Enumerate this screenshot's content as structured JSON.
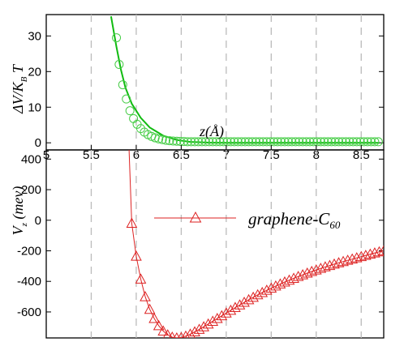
{
  "chart_data": [
    {
      "type": "scatter",
      "title": "",
      "xlabel": "z(Å)",
      "ylabel": "ΔV/K_B T",
      "ylim": [
        -2,
        36
      ],
      "grid": "vertical-dashed",
      "series": [
        {
          "kind": "line",
          "color": "#11bb11",
          "x": [
            5.72,
            5.78,
            5.83,
            5.88,
            5.95,
            6.05,
            6.15,
            6.3,
            6.45,
            6.6,
            6.8,
            7.0,
            7.5,
            8.0,
            8.7
          ],
          "y": [
            35.5,
            27.0,
            20.5,
            15.5,
            11.0,
            7.0,
            4.3,
            2.0,
            0.8,
            0.25,
            0.05,
            0.0,
            0.0,
            0.0,
            0.0
          ]
        },
        {
          "kind": "markers",
          "marker": "circle",
          "color": "#44cc44",
          "x": [
            5.78,
            5.81,
            5.85,
            5.89,
            5.93,
            5.97,
            6.01,
            6.05,
            6.09,
            6.13,
            6.17,
            6.21,
            6.25,
            6.29,
            6.33,
            6.37,
            6.41,
            6.45,
            6.49,
            6.53,
            6.57,
            6.61,
            6.65,
            6.69,
            6.73,
            6.77,
            6.81,
            6.85,
            6.89,
            6.93,
            6.97,
            7.01,
            7.05,
            7.09,
            7.13,
            7.17,
            7.21,
            7.25,
            7.29,
            7.33,
            7.37,
            7.41,
            7.45,
            7.49,
            7.53,
            7.57,
            7.61,
            7.65,
            7.69,
            7.73,
            7.77,
            7.81,
            7.85,
            7.89,
            7.93,
            7.97,
            8.01,
            8.05,
            8.09,
            8.13,
            8.17,
            8.21,
            8.25,
            8.29,
            8.33,
            8.37,
            8.41,
            8.45,
            8.49,
            8.53,
            8.57,
            8.61,
            8.65,
            8.69
          ],
          "y": [
            29.5,
            22.0,
            16.3,
            12.3,
            9.0,
            6.8,
            5.2,
            4.0,
            3.0,
            2.3,
            1.8,
            1.4,
            1.1,
            0.9,
            0.7,
            0.6,
            0.5,
            0.45,
            0.4,
            0.35,
            0.3,
            0.3,
            0.3,
            0.3,
            0.3,
            0.3,
            0.3,
            0.3,
            0.3,
            0.3,
            0.3,
            0.3,
            0.3,
            0.3,
            0.3,
            0.3,
            0.3,
            0.3,
            0.3,
            0.3,
            0.3,
            0.3,
            0.3,
            0.3,
            0.3,
            0.3,
            0.3,
            0.3,
            0.3,
            0.3,
            0.3,
            0.3,
            0.3,
            0.3,
            0.3,
            0.3,
            0.3,
            0.3,
            0.3,
            0.3,
            0.3,
            0.3,
            0.3,
            0.3,
            0.3,
            0.3,
            0.3,
            0.3,
            0.3,
            0.3,
            0.3,
            0.3,
            0.3,
            0.3
          ]
        }
      ],
      "yticks": [
        "0",
        "10",
        "20",
        "30"
      ],
      "xticks": [
        "5",
        "5.5",
        "6",
        "6.5",
        "7",
        "7.5",
        "8",
        "8.5"
      ]
    },
    {
      "type": "line",
      "title": "",
      "xlabel": "",
      "ylabel": "V_z (mev)",
      "ylim": [
        -770,
        460
      ],
      "grid": "vertical-dashed",
      "legend": "upper-right",
      "series": [
        {
          "name": "graphene-C60",
          "marker": "triangle",
          "color": "#dd2222",
          "x": [
            5.95,
            6.0,
            6.05,
            6.1,
            6.15,
            6.2,
            6.25,
            6.3,
            6.35,
            6.4,
            6.45,
            6.5,
            6.55,
            6.6,
            6.65,
            6.7,
            6.75,
            6.8,
            6.85,
            6.9,
            6.95,
            7.0,
            7.05,
            7.1,
            7.15,
            7.2,
            7.25,
            7.3,
            7.35,
            7.4,
            7.45,
            7.5,
            7.55,
            7.6,
            7.65,
            7.7,
            7.75,
            7.8,
            7.85,
            7.9,
            7.95,
            8.0,
            8.05,
            8.1,
            8.15,
            8.2,
            8.25,
            8.3,
            8.35,
            8.4,
            8.45,
            8.5,
            8.55,
            8.6,
            8.65,
            8.7,
            8.75
          ],
          "y": [
            -20,
            -235,
            -385,
            -500,
            -583,
            -643,
            -690,
            -725,
            -750,
            -765,
            -770,
            -767,
            -758,
            -745,
            -730,
            -714,
            -697,
            -679,
            -661,
            -643,
            -625,
            -607,
            -589,
            -571,
            -554,
            -537,
            -520,
            -504,
            -488,
            -473,
            -458,
            -444,
            -430,
            -417,
            -404,
            -392,
            -380,
            -368,
            -357,
            -346,
            -335,
            -325,
            -315,
            -305,
            -296,
            -287,
            -278,
            -270,
            -262,
            -254,
            -246,
            -238,
            -230,
            -222,
            -214,
            -207,
            -200
          ]
        }
      ],
      "yticks": [
        "400",
        "200",
        "0",
        "-200",
        "-400",
        "-600"
      ],
      "legend_label": "graphene-C",
      "legend_subscript": "60"
    }
  ]
}
